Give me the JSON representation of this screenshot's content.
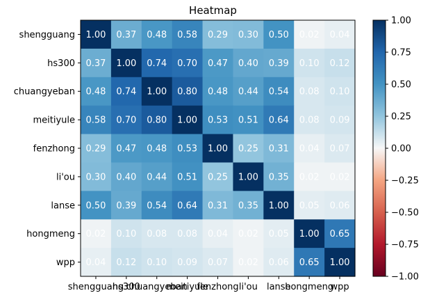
{
  "chart_data": {
    "type": "heatmap",
    "title": "Heatmap",
    "xlabel": "",
    "ylabel": "",
    "rows": [
      "shengguang",
      "hs300",
      "chuangyeban",
      "meitiyule",
      "fenzhong",
      "li'ou",
      "lanse",
      "hongmeng",
      "wpp"
    ],
    "cols": [
      "shengguang",
      "hs300",
      "chuangyeban",
      "meitiyule",
      "fenzhong",
      "li'ou",
      "lanse",
      "hongmeng",
      "wpp"
    ],
    "values": [
      [
        1.0,
        0.37,
        0.48,
        0.58,
        0.29,
        0.3,
        0.5,
        0.02,
        0.04
      ],
      [
        0.37,
        1.0,
        0.74,
        0.7,
        0.47,
        0.4,
        0.39,
        0.1,
        0.12
      ],
      [
        0.48,
        0.74,
        1.0,
        0.8,
        0.48,
        0.44,
        0.54,
        0.08,
        0.1
      ],
      [
        0.58,
        0.7,
        0.8,
        1.0,
        0.53,
        0.51,
        0.64,
        0.08,
        0.09
      ],
      [
        0.29,
        0.47,
        0.48,
        0.53,
        1.0,
        0.25,
        0.31,
        0.04,
        0.07
      ],
      [
        0.3,
        0.4,
        0.44,
        0.51,
        0.25,
        1.0,
        0.35,
        0.02,
        0.02
      ],
      [
        0.5,
        0.39,
        0.54,
        0.64,
        0.31,
        0.35,
        1.0,
        0.05,
        0.06
      ],
      [
        0.02,
        0.1,
        0.08,
        0.08,
        0.04,
        0.02,
        0.05,
        1.0,
        0.65
      ],
      [
        0.04,
        0.12,
        0.1,
        0.09,
        0.07,
        0.02,
        0.06,
        0.65,
        1.0
      ]
    ],
    "value_format": "0.00",
    "colormap": "RdBu",
    "colorbar": {
      "range": [
        -1.0,
        1.0
      ],
      "ticks": [
        1.0,
        0.75,
        0.5,
        0.25,
        0.0,
        -0.25,
        -0.5,
        -0.75,
        -1.0
      ],
      "tick_labels": [
        "1.00",
        "0.75",
        "0.50",
        "0.25",
        "0.00",
        "−0.25",
        "−0.50",
        "−0.75",
        "−1.00"
      ]
    },
    "grid": false,
    "legend": "none"
  }
}
